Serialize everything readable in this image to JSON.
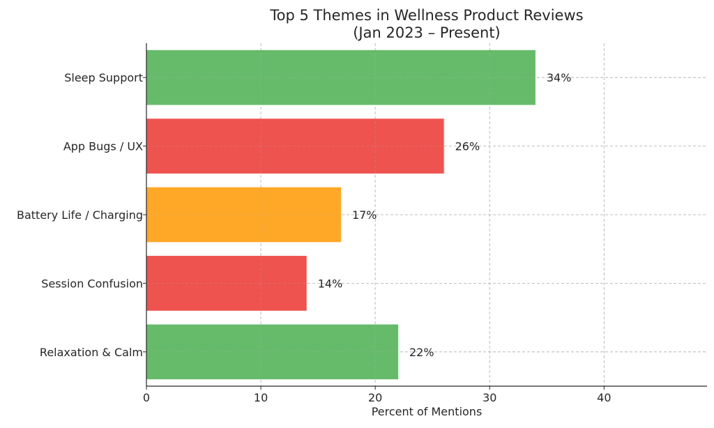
{
  "chart_data": {
    "type": "bar",
    "orientation": "horizontal",
    "title": "Top 5 Themes in Wellness Product Reviews",
    "subtitle": "(Jan 2023 – Present)",
    "xlabel": "Percent of Mentions",
    "ylabel": "",
    "categories": [
      "Sleep Support",
      "App Bugs / UX",
      "Battery Life / Charging",
      "Session Confusion",
      "Relaxation & Calm"
    ],
    "values": [
      34,
      26,
      17,
      14,
      22
    ],
    "data_labels": [
      "34%",
      "26%",
      "17%",
      "14%",
      "22%"
    ],
    "colors": [
      "#66bb6a",
      "#ef5350",
      "#ffa726",
      "#ef5350",
      "#66bb6a"
    ],
    "xlim": [
      0,
      49
    ],
    "xticks": [
      0,
      10,
      20,
      30,
      40
    ],
    "xtick_labels": [
      "0",
      "10",
      "20",
      "30",
      "40"
    ],
    "grid": true
  }
}
